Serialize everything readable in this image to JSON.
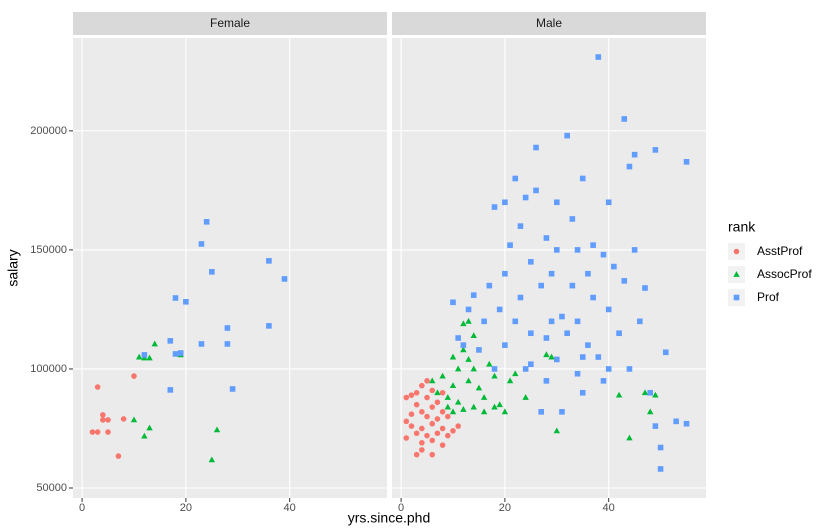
{
  "chart_data": {
    "type": "scatter",
    "x_label": "yrs.since.phd",
    "y_label": "salary",
    "legend_title": "rank",
    "legend_position": "right",
    "grid": true,
    "xlim": [
      -1.75,
      58.75
    ],
    "ylim": [
      45800,
      239000
    ],
    "xticks": [
      0,
      20,
      40
    ],
    "yticks": [
      50000,
      100000,
      150000,
      200000
    ],
    "series": [
      {
        "name": "AsstProf",
        "color": "#F8766D",
        "marker": "circle"
      },
      {
        "name": "AssocProf",
        "color": "#00BA38",
        "marker": "triangle"
      },
      {
        "name": "Prof",
        "color": "#619CFF",
        "marker": "square"
      }
    ],
    "panels": [
      {
        "title": "Female",
        "data": [
          {
            "x": [
              2,
              3,
              3,
              4,
              4,
              5,
              5,
              7,
              8,
              10
            ],
            "y": [
              73500,
              73500,
              92400,
              80700,
              78600,
              78600,
              73500,
              63400,
              79000,
              97000
            ]
          },
          {
            "x": [
              10,
              11,
              12,
              13,
              12,
              13,
              14,
              19,
              25,
              26
            ],
            "y": [
              78600,
              105000,
              104600,
              104600,
              71800,
              75200,
              110500,
              105900,
              61800,
              74400
            ]
          },
          {
            "x": [
              17,
              17,
              18,
              18,
              19,
              20,
              23,
              23,
              24,
              25,
              28,
              28,
              29,
              36,
              36,
              39,
              12
            ],
            "y": [
              91200,
              111800,
              129800,
              106300,
              106700,
              128200,
              110500,
              152500,
              161800,
              140800,
              117200,
              110500,
              91600,
              118100,
              145400,
              137800,
              105900
            ]
          }
        ]
      },
      {
        "title": "Male",
        "data": [
          {
            "x": [
              1,
              1,
              1,
              2,
              2,
              3,
              3,
              3,
              3,
              4,
              4,
              4,
              4,
              5,
              5,
              5,
              5,
              6,
              6,
              6,
              6,
              7,
              7,
              7,
              8,
              8,
              8,
              8,
              9,
              9,
              10,
              11,
              2,
              4,
              6
            ],
            "y": [
              88000,
              78000,
              71000,
              89000,
              76000,
              90000,
              85000,
              64000,
              73000,
              93000,
              82000,
              75000,
              69000,
              95000,
              88000,
              80000,
              72000,
              91000,
              84000,
              77000,
              70000,
              86000,
              79000,
              73000,
              90000,
              82000,
              75000,
              68000,
              80000,
              72000,
              74000,
              76000,
              81000,
              66000,
              64000
            ]
          },
          {
            "x": [
              6,
              7,
              8,
              9,
              9,
              10,
              10,
              11,
              11,
              12,
              12,
              12,
              13,
              13,
              13,
              14,
              14,
              15,
              16,
              17,
              18,
              18,
              19,
              20,
              21,
              22,
              24,
              28,
              29,
              30,
              42,
              44,
              47,
              48,
              49,
              10,
              14,
              16
            ],
            "y": [
              95000,
              90000,
              97000,
              88000,
              84000,
              105000,
              93000,
              100000,
              86000,
              119000,
              108000,
              83000,
              120000,
              104000,
              95000,
              100000,
              84000,
              92000,
              88000,
              102000,
              97000,
              84000,
              85000,
              82000,
              95000,
              98000,
              88000,
              106000,
              105000,
              74000,
              89000,
              71000,
              90000,
              82000,
              89000,
              82000,
              114000,
              82000
            ]
          },
          {
            "x": [
              10,
              11,
              12,
              13,
              14,
              15,
              16,
              17,
              18,
              18,
              19,
              20,
              20,
              21,
              22,
              22,
              23,
              23,
              24,
              25,
              25,
              26,
              26,
              27,
              28,
              28,
              29,
              29,
              30,
              30,
              30,
              31,
              32,
              32,
              33,
              33,
              34,
              34,
              35,
              35,
              36,
              36,
              37,
              37,
              38,
              38,
              39,
              39,
              40,
              40,
              41,
              42,
              43,
              43,
              44,
              44,
              45,
              45,
              46,
              47,
              48,
              49,
              49,
              50,
              51,
              53,
              55,
              55,
              50,
              20,
              24,
              28,
              35,
              40,
              27,
              34,
              31,
              25
            ],
            "y": [
              128000,
              113000,
              110000,
              125000,
              131000,
              108000,
              120000,
              135000,
              100000,
              168000,
              125000,
              140000,
              110000,
              152000,
              180000,
              120000,
              160000,
              130000,
              100000,
              145000,
              115000,
              193000,
              175000,
              135000,
              155000,
              95000,
              140000,
              120000,
              170000,
              150000,
              104000,
              82000,
              198000,
              115000,
              163000,
              135000,
              150000,
              120000,
              180000,
              90000,
              140000,
              110000,
              152000,
              130000,
              231000,
              105000,
              148000,
              95000,
              170000,
              125000,
              143000,
              115000,
              137000,
              205000,
              185000,
              100000,
              150000,
              190000,
              120000,
              134000,
              90000,
              192000,
              76000,
              67000,
              107000,
              78000,
              187000,
              77000,
              58000,
              170000,
              172000,
              113000,
              105000,
              100000,
              82000,
              98000,
              122000,
              102000
            ]
          }
        ]
      }
    ]
  }
}
